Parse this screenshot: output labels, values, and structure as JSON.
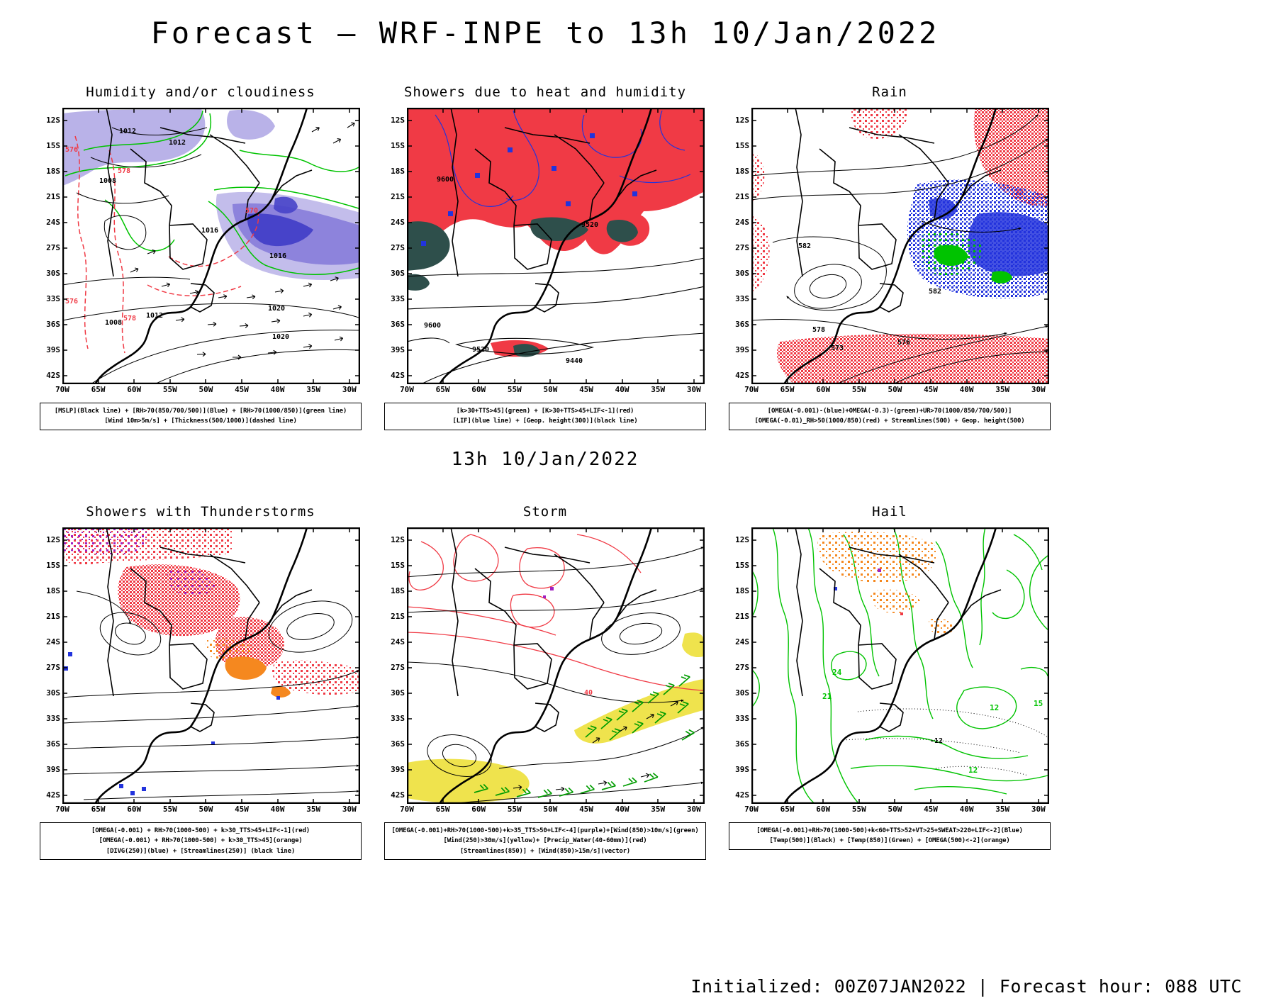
{
  "page": {
    "title": "Forecast — WRF-INPE to 13h 10/Jan/2022",
    "subtitle": "13h 10/Jan/2022",
    "footer": "Initialized: 00Z07JAN2022 | Forecast hour: 088 UTC"
  },
  "axes": {
    "lat": [
      "12S",
      "15S",
      "18S",
      "21S",
      "24S",
      "27S",
      "30S",
      "33S",
      "36S",
      "39S",
      "42S"
    ],
    "lon": [
      "70W",
      "65W",
      "60W",
      "55W",
      "50W",
      "45W",
      "40W",
      "35W",
      "30W"
    ]
  },
  "panels": [
    {
      "title": "Humidity and/or cloudiness",
      "legend": [
        "[MSLP](Black line) + [RH>70(850/700/500)](Blue) + [RH>70(1000/850)](green line)",
        "[Wind 10m>5m/s] + [Thickness(500/1000)](dashed line)"
      ],
      "map_labels": [
        "1012",
        "1012",
        "1008",
        "1016",
        "1016",
        "1020",
        "1020",
        "1008",
        "1012",
        "576",
        "578",
        "570",
        "576",
        "578"
      ]
    },
    {
      "title": "Showers due to heat and humidity",
      "legend": [
        "[k>30+TTS>45](green) + [K>30+TTS>45+LIF<-1](red)",
        "[LIF](blue line) + [Geop. height(300)](black line)"
      ],
      "map_labels": [
        "9600",
        "9520",
        "9600",
        "9520",
        "9440"
      ]
    },
    {
      "title": "Rain",
      "legend": [
        "[OMEGA(-0.001)-(blue)+OMEGA(-0.3)-(green)+UR>70(1000/850/700/500)]",
        "[OMEGA(-0.01)_RH>50(1000/850)(red) + Streamlines(500) + Geop. height(500)"
      ],
      "map_labels": [
        "582",
        "582",
        "578",
        "573",
        "576"
      ]
    },
    {
      "title": "Showers with Thunderstorms",
      "legend": [
        "[OMEGA(-0.001) + RH>70(1000-500) + k>30_TTS>45+LIF<-1](red)",
        "[OMEGA(-0.001) + RH>70(1000-500) + k>30_TTS>45](orange)",
        "[DIVG(250)](blue) + [Streamlines(250)] (black line)"
      ],
      "map_labels": []
    },
    {
      "title": "Storm",
      "legend": [
        "[OMEGA(-0.001)+RH>70(1000-500)+k>35_TTS>50+LIF<-4](purple)+[Wind(850)>10m/s](green)",
        "[Wind(250)>30m/s](yellow)+ [Precip_Water(40-60mm)](red)",
        "[Streamlines(850)] + [Wind(850)>15m/s](vector)"
      ],
      "map_labels": [
        "40"
      ]
    },
    {
      "title": "Hail",
      "legend": [
        "[OMEGA(-0.001)+RH>70(1000-500)+k<60+TTS>52+VT>25+SWEAT>220+LIF<-2](Blue)",
        "[Temp(500)](Black) + [Temp(850)](Green) + [OMEGA(500)<-2](orange)"
      ],
      "map_labels": [
        "24",
        "21",
        "12",
        "15",
        "12",
        "-12"
      ]
    }
  ],
  "colors": {
    "red": "#f03a45",
    "blue": "#2233dd",
    "green": "#00c300",
    "wgreen": "#009c00",
    "darkteal": "#2e4f4b",
    "lavender": "#b9b2e8",
    "mpurple": "#8d83dc",
    "dblue": "#4743c9",
    "orange": "#f5881f",
    "yellow": "#efe34d",
    "purple": "#a020c0"
  }
}
